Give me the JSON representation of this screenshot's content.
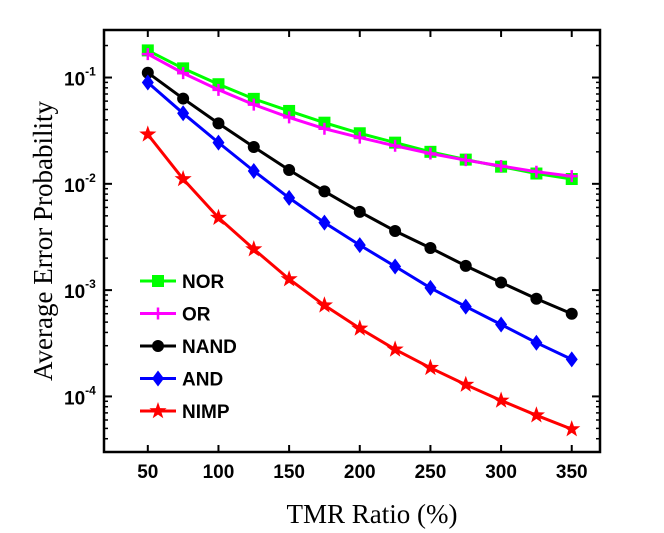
{
  "chart_data": {
    "type": "line",
    "title": "",
    "xlabel": "TMR Ratio (%)",
    "ylabel": "Average Error Probability",
    "xscale": "linear",
    "yscale": "log",
    "xlim": [
      19,
      370
    ],
    "ylim": [
      3e-05,
      0.28
    ],
    "grid": false,
    "legend_position": "bottom-left",
    "x_ticks": [
      50,
      100,
      150,
      200,
      250,
      300,
      350
    ],
    "y_ticks": [
      {
        "base": "10",
        "exp": "-1",
        "value": 0.1
      },
      {
        "base": "10",
        "exp": "-2",
        "value": 0.01
      },
      {
        "base": "10",
        "exp": "-3",
        "value": 0.001
      },
      {
        "base": "10",
        "exp": "-4",
        "value": 0.0001
      }
    ],
    "x": [
      50,
      75,
      100,
      125,
      150,
      175,
      200,
      225,
      250,
      275,
      300,
      325,
      350
    ],
    "series": [
      {
        "name": "NOR",
        "color": "#00ff00",
        "marker": "square",
        "values": [
          0.18,
          0.122,
          0.0865,
          0.063,
          0.0485,
          0.0376,
          0.0299,
          0.0244,
          0.02,
          0.0169,
          0.0145,
          0.0125,
          0.0111
        ]
      },
      {
        "name": "OR",
        "color": "#ff00ff",
        "marker": "plus",
        "values": [
          0.166,
          0.11,
          0.0766,
          0.0556,
          0.0422,
          0.033,
          0.0272,
          0.0228,
          0.0193,
          0.0167,
          0.0147,
          0.013,
          0.0118
        ]
      },
      {
        "name": "NAND",
        "color": "#000000",
        "marker": "circle",
        "values": [
          0.111,
          0.0634,
          0.037,
          0.0222,
          0.0135,
          0.0085,
          0.00545,
          0.0036,
          0.00249,
          0.00169,
          0.00118,
          0.00083,
          0.0006
        ]
      },
      {
        "name": "AND",
        "color": "#0000ff",
        "marker": "diamond",
        "values": [
          0.0897,
          0.0461,
          0.0244,
          0.0132,
          0.00738,
          0.00432,
          0.00265,
          0.00167,
          0.00105,
          0.0007,
          0.000475,
          0.00032,
          0.000223
        ]
      },
      {
        "name": "NIMP",
        "color": "#ff0000",
        "marker": "star",
        "values": [
          0.0292,
          0.0111,
          0.0048,
          0.00243,
          0.00127,
          0.00072,
          0.000436,
          0.000277,
          0.000186,
          0.000129,
          9.16e-05,
          6.65e-05,
          4.93e-05
        ]
      }
    ]
  }
}
